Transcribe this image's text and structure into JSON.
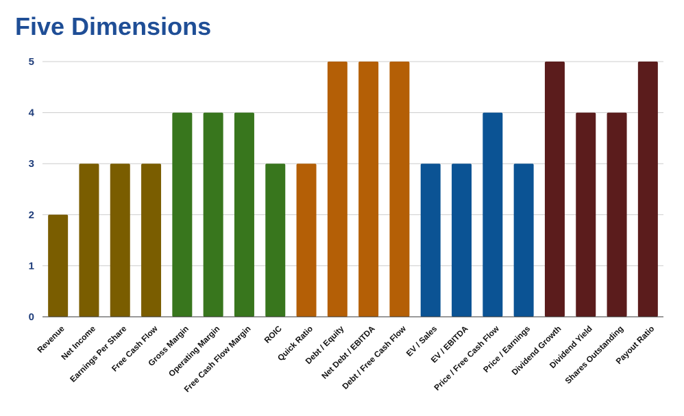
{
  "chart_data": {
    "type": "bar",
    "title": "Five Dimensions",
    "xlabel": "",
    "ylabel": "",
    "ylim": [
      0,
      5
    ],
    "yticks": [
      0,
      1,
      2,
      3,
      4,
      5
    ],
    "grid": true,
    "categories": [
      "Revenue",
      "Net Income",
      "Earnings Per Share",
      "Free Cash Flow",
      "Gross Margin",
      "Operating Margin",
      "Free Cash Flow Margin",
      "ROIC",
      "Quick Ratio",
      "Debt / Equity",
      "Net Debt / EBITDA",
      "Debt / Free Cash Flow",
      "EV / Sales",
      "EV / EBITDA",
      "Price / Free Cash Flow",
      "Price / Earnings",
      "Dividend Growth",
      "Dividend Yield",
      "Shares Outstanding",
      "Payout Ratio"
    ],
    "values": [
      2,
      3,
      3,
      3,
      4,
      4,
      4,
      3,
      3,
      5,
      5,
      5,
      3,
      3,
      4,
      3,
      5,
      4,
      4,
      5
    ],
    "colors": [
      "#7a5d00",
      "#7a5d00",
      "#7a5d00",
      "#7a5d00",
      "#38761d",
      "#38761d",
      "#38761d",
      "#38761d",
      "#b45f06",
      "#b45f06",
      "#b45f06",
      "#b45f06",
      "#0b5394",
      "#0b5394",
      "#0b5394",
      "#0b5394",
      "#5b1c1c",
      "#5b1c1c",
      "#5b1c1c",
      "#5b1c1c"
    ],
    "title_color": "#1f4e96",
    "tick_color": "#1f3d7a",
    "grid_color": "#cccccc"
  }
}
